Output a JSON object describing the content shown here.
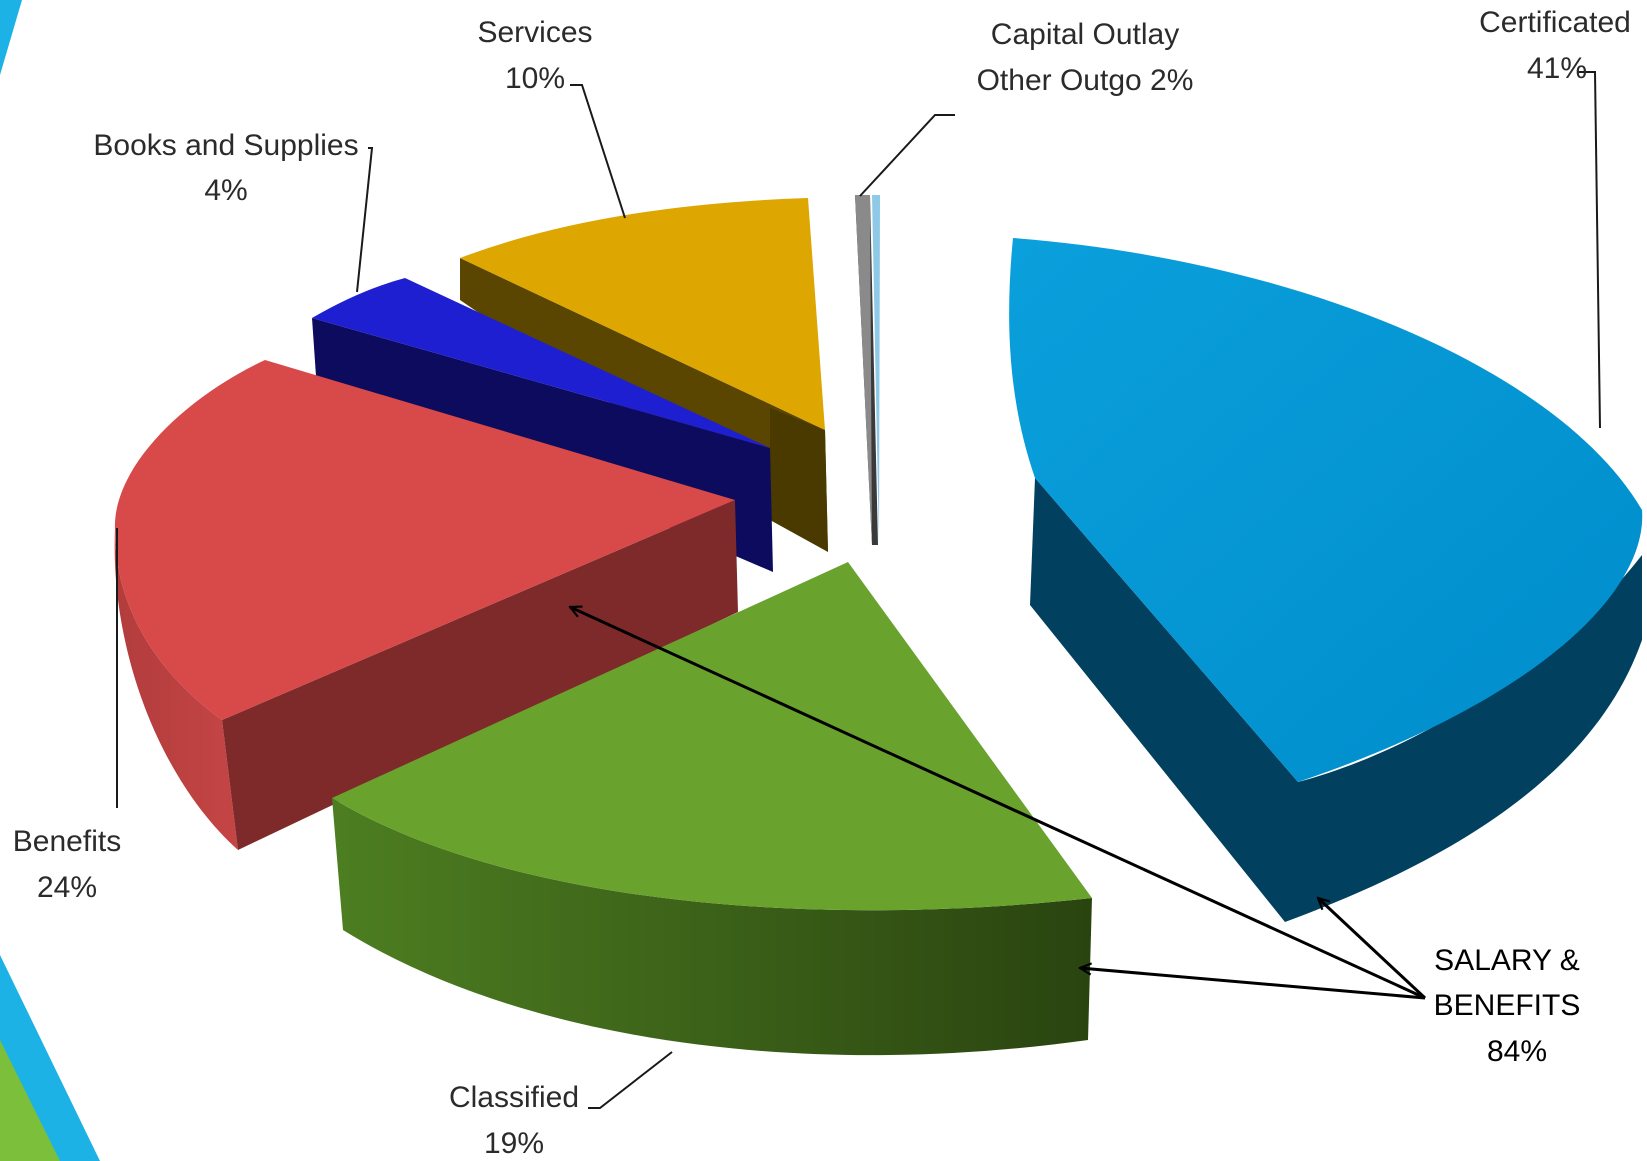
{
  "chart_data": {
    "type": "pie",
    "title": "",
    "style": "3d-exploded",
    "slices": [
      {
        "name_line1": "Certificated",
        "pct_label": "41%",
        "value": 41,
        "color": "#0096d4"
      },
      {
        "name_line1": "Classified",
        "pct_label": "19%",
        "value": 19,
        "color": "#6aa22e"
      },
      {
        "name_line1": "Benefits",
        "pct_label": "24%",
        "value": 24,
        "color": "#d84949"
      },
      {
        "name_line1": "Books and Supplies",
        "pct_label": "4%",
        "value": 4,
        "color": "#1f1fd2"
      },
      {
        "name_line1": "Services",
        "pct_label": "10%",
        "value": 10,
        "color": "#dda600"
      },
      {
        "name_line1": "Capital Outlay",
        "name_line2": "Other Outgo 2%",
        "value": 2,
        "color": "#7f7f7f"
      }
    ],
    "callout": {
      "line1": "SALARY &",
      "line2": "BENEFITS",
      "line3": "84%",
      "targets": [
        "Certificated",
        "Classified",
        "Benefits"
      ]
    }
  },
  "colors": {
    "accent_blue": "#1cb2e6",
    "accent_green": "#7bbf3a"
  }
}
